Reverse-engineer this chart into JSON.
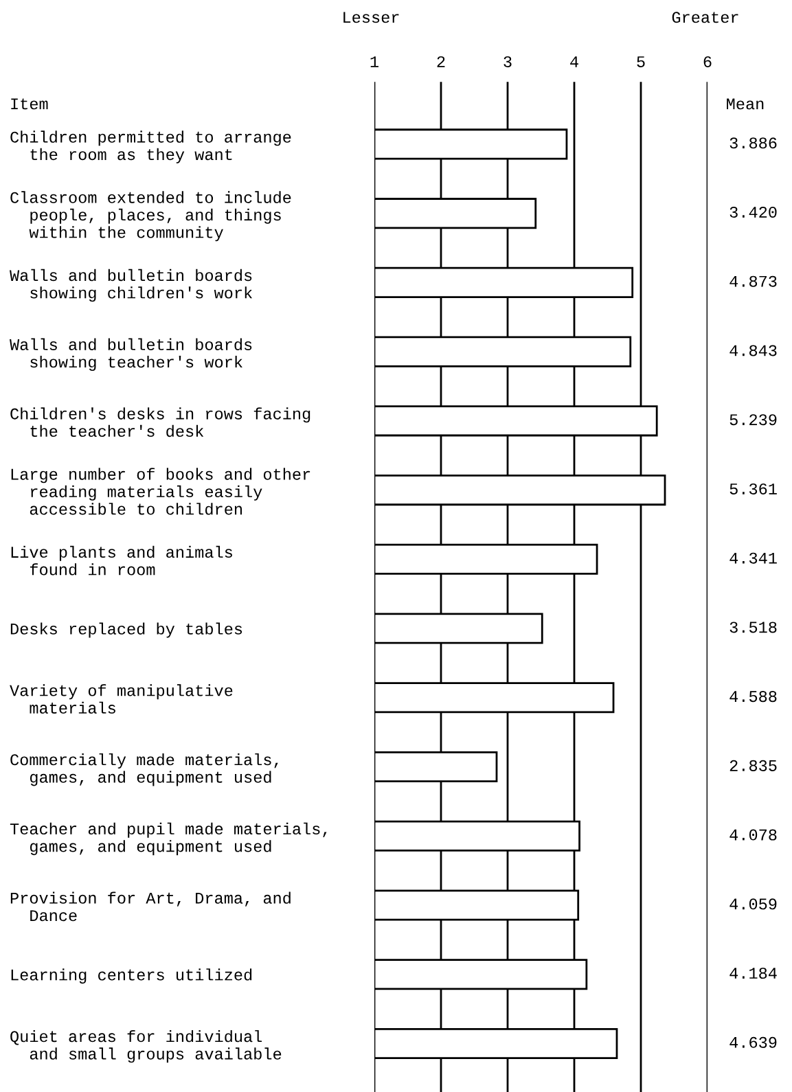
{
  "chart_data": {
    "type": "bar",
    "orientation": "horizontal",
    "categories": [
      "Children permitted to arrange\n  the room as they want",
      "Classroom extended to include\n  people, places, and things\n  within the community",
      "Walls and bulletin boards\n  showing children's work",
      "Walls and bulletin boards\n  showing teacher's work",
      "Children's desks in rows facing\n  the teacher's desk",
      "Large number of books and other\n  reading materials easily\n  accessible to children",
      "Live plants and animals\n  found in room",
      "Desks replaced by tables",
      "Variety of manipulative\n  materials",
      "Commercially made materials,\n  games, and equipment used",
      "Teacher and pupil made materials,\n  games, and equipment used",
      "Provision for Art, Drama, and\n  Dance",
      "Learning centers utilized",
      "Quiet areas for individual\n  and small groups available"
    ],
    "values": [
      3.886,
      3.42,
      4.873,
      4.843,
      5.239,
      5.361,
      4.341,
      3.518,
      4.588,
      2.835,
      4.078,
      4.059,
      4.184,
      4.639
    ],
    "value_labels": [
      "3.886",
      "3.420",
      "4.873",
      "4.843",
      "5.239",
      "5.361",
      "4.341",
      "3.518",
      "4.588",
      "2.835",
      "4.078",
      "4.059",
      "4.184",
      "4.639"
    ],
    "color": "#ffffff",
    "xlim": [
      1,
      6
    ],
    "xticks": [
      1,
      2,
      3,
      4,
      5,
      6
    ],
    "grid": "x",
    "ylabel": "Item",
    "annotations": [
      "Lesser",
      "Greater",
      "Mean"
    ]
  }
}
